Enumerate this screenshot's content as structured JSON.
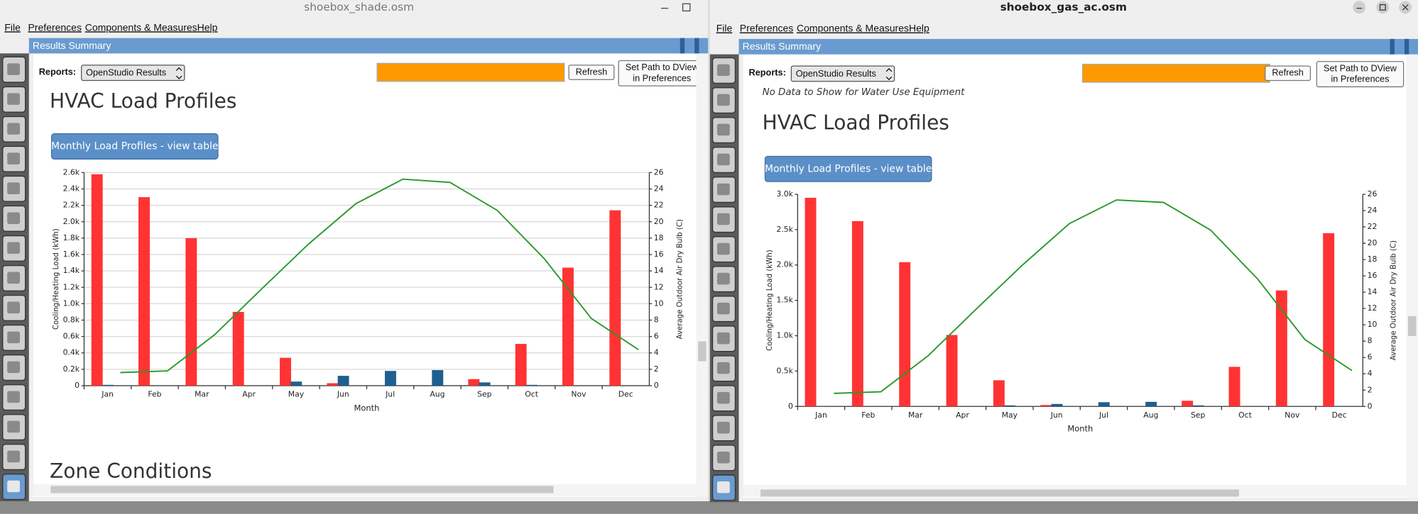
{
  "windows": [
    {
      "title": "shoebox_shade.osm",
      "menu": [
        "File",
        "Preferences",
        "Components & Measures",
        "Help"
      ],
      "panel_title": "Results Summary",
      "reports_label": "Reports:",
      "reports_value": "OpenStudio Results",
      "refresh": "Refresh",
      "dview": [
        "Set Path to DView",
        "in Preferences"
      ],
      "heading": "HVAC Load Profiles",
      "button": "Monthly Load Profiles - view table",
      "chart": {
        "type": "bar",
        "categories": [
          "Jan",
          "Feb",
          "Mar",
          "Apr",
          "May",
          "Jun",
          "Jul",
          "Aug",
          "Sep",
          "Oct",
          "Nov",
          "Dec"
        ],
        "series": [
          {
            "type": "bar",
            "color": "#ff3333",
            "values": [
              2580,
              2300,
              1800,
              900,
              340,
              30,
              0,
              0,
              80,
              510,
              1440,
              2140
            ]
          },
          {
            "type": "bar",
            "color": "#1f5f8f",
            "values": [
              10,
              0,
              0,
              0,
              50,
              120,
              180,
              190,
              40,
              10,
              0,
              0
            ]
          },
          {
            "type": "line",
            "color": "#2a9a2a",
            "axis": "y2",
            "values": [
              1.6,
              1.8,
              6.2,
              11.8,
              17.3,
              22.2,
              25.2,
              24.8,
              21.4,
              15.5,
              8.2,
              4.4
            ]
          }
        ],
        "ylim": [
          0,
          2600
        ],
        "yticks": [
          0,
          {
            "value": 200,
            "label": "0.2k"
          },
          {
            "value": 400,
            "label": "0.4k"
          },
          {
            "value": 600,
            "label": "0.6k"
          },
          {
            "value": 800,
            "label": "0.8k"
          },
          {
            "value": 1000,
            "label": "1.0k"
          },
          {
            "value": 1200,
            "label": "1.2k"
          },
          {
            "value": 1400,
            "label": "1.4k"
          },
          {
            "value": 1600,
            "label": "1.6k"
          },
          {
            "value": 1800,
            "label": "1.8k"
          },
          {
            "value": 2000,
            "label": "2.0k"
          },
          {
            "value": 2200,
            "label": "2.2k"
          },
          {
            "value": 2400,
            "label": "2.4k"
          },
          {
            "value": 2600,
            "label": "2.6k"
          }
        ],
        "y2lim": [
          0,
          26
        ],
        "y2ticks": [
          0,
          2,
          4,
          6,
          8,
          10,
          12,
          14,
          16,
          18,
          20,
          22,
          24,
          26
        ],
        "ylabel": "Cooling/Heating Load (kWh)",
        "y2label": "Average Outdoor Air Dry Bulb (C)",
        "xlabel": "Month",
        "grid": true
      },
      "next_heading": "Zone Conditions"
    },
    {
      "title": "shoebox_gas_ac.osm",
      "menu": [
        "File",
        "Preferences",
        "Components & Measures",
        "Help"
      ],
      "panel_title": "Results Summary",
      "reports_label": "Reports:",
      "reports_value": "OpenStudio Results",
      "refresh": "Refresh",
      "dview": [
        "Set Path to DView",
        "in Preferences"
      ],
      "note": "No Data to Show for Water Use Equipment",
      "heading": "HVAC Load Profiles",
      "button": "Monthly Load Profiles - view table",
      "chart": {
        "type": "bar",
        "categories": [
          "Jan",
          "Feb",
          "Mar",
          "Apr",
          "May",
          "Jun",
          "Jul",
          "Aug",
          "Sep",
          "Oct",
          "Nov",
          "Dec"
        ],
        "series": [
          {
            "type": "bar",
            "color": "#ff3333",
            "values": [
              2950,
              2620,
              2040,
              1010,
              370,
              20,
              0,
              0,
              80,
              560,
              1640,
              2450
            ]
          },
          {
            "type": "bar",
            "color": "#1f5f8f",
            "values": [
              5,
              0,
              0,
              0,
              15,
              35,
              60,
              65,
              15,
              0,
              0,
              5
            ]
          },
          {
            "type": "line",
            "color": "#2a9a2a",
            "axis": "y2",
            "values": [
              1.6,
              1.8,
              6.2,
              11.8,
              17.3,
              22.4,
              25.3,
              25.0,
              21.6,
              15.6,
              8.2,
              4.4
            ]
          }
        ],
        "ylim": [
          0,
          3000
        ],
        "yticks": [
          0,
          {
            "value": 500,
            "label": "0.5k"
          },
          {
            "value": 1000,
            "label": "1.0k"
          },
          {
            "value": 1500,
            "label": "1.5k"
          },
          {
            "value": 2000,
            "label": "2.0k"
          },
          {
            "value": 2500,
            "label": "2.5k"
          },
          {
            "value": 3000,
            "label": "3.0k"
          }
        ],
        "y2lim": [
          0,
          26
        ],
        "y2ticks": [
          0,
          2,
          4,
          6,
          8,
          10,
          12,
          14,
          16,
          18,
          20,
          22,
          24,
          26
        ],
        "ylabel": "Cooling/Heating Load (kWh)",
        "y2label": "Average Outdoor Air Dry Bulb (C)",
        "xlabel": "Month",
        "grid": false
      }
    }
  ]
}
